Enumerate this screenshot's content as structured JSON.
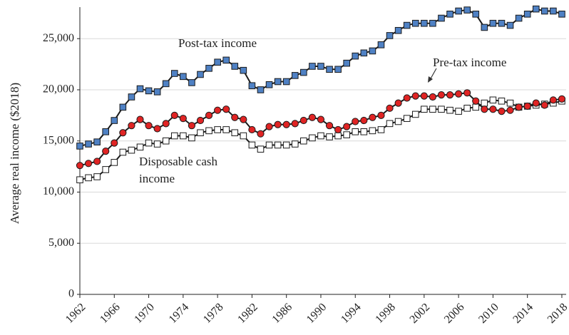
{
  "chart_data": {
    "type": "line",
    "ylabel": "Average real income ($2018)",
    "x": [
      1962,
      1963,
      1964,
      1965,
      1966,
      1967,
      1968,
      1969,
      1970,
      1971,
      1972,
      1973,
      1974,
      1975,
      1976,
      1977,
      1978,
      1979,
      1980,
      1981,
      1982,
      1983,
      1984,
      1985,
      1986,
      1987,
      1988,
      1989,
      1990,
      1991,
      1992,
      1993,
      1994,
      1995,
      1996,
      1997,
      1998,
      1999,
      2000,
      2001,
      2002,
      2003,
      2004,
      2005,
      2006,
      2007,
      2008,
      2009,
      2010,
      2011,
      2012,
      2013,
      2014,
      2015,
      2016,
      2017,
      2018
    ],
    "series": [
      {
        "name": "Disposable cash income",
        "color": "#ffffff",
        "marker": "square",
        "values": [
          11200,
          11400,
          11500,
          12200,
          12900,
          13900,
          14100,
          14400,
          14800,
          14700,
          15000,
          15500,
          15500,
          15300,
          15800,
          16000,
          16100,
          16100,
          15800,
          15500,
          14600,
          14200,
          14600,
          14600,
          14600,
          14700,
          15000,
          15300,
          15500,
          15400,
          15500,
          15600,
          15900,
          15900,
          16000,
          16100,
          16700,
          16900,
          17200,
          17600,
          18100,
          18100,
          18100,
          18000,
          17900,
          18200,
          18300,
          18700,
          19000,
          18900,
          18700,
          18300,
          18400,
          18500,
          18600,
          18700,
          18900
        ]
      },
      {
        "name": "Pre-tax income",
        "color": "#e02424",
        "marker": "circle",
        "values": [
          12600,
          12800,
          13000,
          14000,
          14800,
          15800,
          16500,
          17100,
          16500,
          16200,
          16700,
          17500,
          17200,
          16500,
          17000,
          17500,
          18000,
          18100,
          17300,
          17100,
          16100,
          15700,
          16400,
          16600,
          16600,
          16700,
          17000,
          17300,
          17100,
          16500,
          16100,
          16400,
          16900,
          17000,
          17300,
          17500,
          18200,
          18700,
          19200,
          19400,
          19400,
          19300,
          19500,
          19500,
          19600,
          19700,
          18900,
          18100,
          18100,
          17900,
          18000,
          18300,
          18400,
          18700,
          18500,
          19000,
          19100
        ]
      },
      {
        "name": "Post-tax income",
        "color": "#4f81c4",
        "marker": "square",
        "values": [
          14500,
          14700,
          14900,
          15900,
          17000,
          18300,
          19300,
          20100,
          19900,
          19800,
          20600,
          21600,
          21300,
          20700,
          21500,
          22100,
          22700,
          22900,
          22300,
          21900,
          20400,
          20000,
          20500,
          20800,
          20800,
          21400,
          21700,
          22300,
          22300,
          22000,
          22000,
          22600,
          23300,
          23600,
          23800,
          24400,
          25300,
          25800,
          26300,
          26500,
          26500,
          26500,
          27000,
          27400,
          27700,
          27800,
          27400,
          26100,
          26500,
          26500,
          26300,
          27000,
          27400,
          27900,
          27700,
          27700,
          27400
        ]
      }
    ],
    "xlim": [
      1962,
      2018.5
    ],
    "xticks": [
      1962,
      1966,
      1970,
      1974,
      1978,
      1982,
      1986,
      1990,
      1994,
      1998,
      2002,
      2006,
      2010,
      2014,
      2018
    ],
    "ylim": [
      0,
      28500
    ],
    "yticks": [
      0,
      {
        "value": 5000,
        "label": "5,000"
      },
      {
        "value": 10000,
        "label": "10,000"
      },
      {
        "value": 15000,
        "label": "15,000"
      },
      {
        "value": 20000,
        "label": "20,000"
      },
      {
        "value": 25000,
        "label": "25,000"
      }
    ],
    "grid": true
  }
}
